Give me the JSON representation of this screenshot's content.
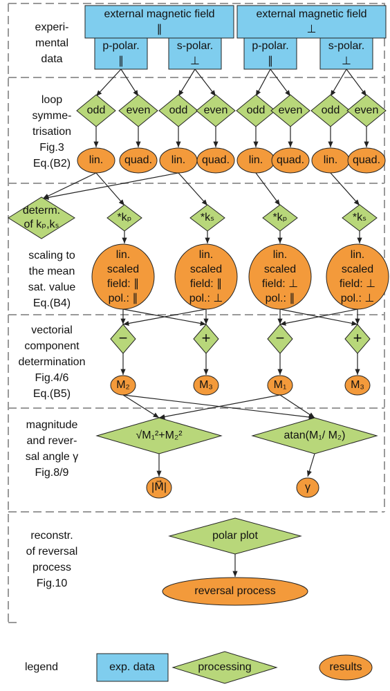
{
  "sections": [
    {
      "label": [
        "experi-",
        "mental",
        "data"
      ]
    },
    {
      "label": [
        "loop",
        "symme-",
        "trisation",
        "Fig.3",
        "Eq.(B2)"
      ]
    },
    {
      "label": [
        "scaling to",
        "the mean",
        "sat. value",
        "Eq.(B4)"
      ]
    },
    {
      "label": [
        "vectorial",
        "component",
        "determination",
        "Fig.4/6",
        "Eq.(B5)"
      ]
    },
    {
      "label": [
        "magnitude",
        "and rever-",
        "sal angle γ",
        "Fig.8/9"
      ]
    },
    {
      "label": [
        "reconstr.",
        "of reversal",
        "process",
        "Fig.10"
      ]
    }
  ],
  "top_boxes": [
    {
      "lines": [
        "external magnetic field",
        "∥"
      ]
    },
    {
      "lines": [
        "external magnetic field",
        "⊥"
      ]
    }
  ],
  "sub_boxes": [
    {
      "lines": [
        "p-polar.",
        "∥"
      ]
    },
    {
      "lines": [
        "s-polar.",
        "⊥"
      ]
    },
    {
      "lines": [
        "p-polar.",
        "∥"
      ]
    },
    {
      "lines": [
        "s-polar.",
        "⊥"
      ]
    }
  ],
  "symmetry_diamonds": [
    "odd",
    "even",
    "odd",
    "even",
    "odd",
    "even",
    "odd",
    "even"
  ],
  "symmetry_results": [
    "lin.",
    "quad.",
    "lin.",
    "quad.",
    "lin.",
    "quad.",
    "lin.",
    "quad."
  ],
  "determ": [
    "determ.",
    "of kₚ,kₛ"
  ],
  "scale_diamonds": [
    "*kₚ",
    "*kₛ",
    "*kₚ",
    "*kₛ"
  ],
  "scaled": [
    {
      "lines": [
        "lin.",
        "scaled",
        "field: ∥",
        "pol.: ∥"
      ]
    },
    {
      "lines": [
        "lin.",
        "scaled",
        "field: ∥",
        "pol.: ⊥"
      ]
    },
    {
      "lines": [
        "lin.",
        "scaled",
        "field: ⊥",
        "pol.: ∥"
      ]
    },
    {
      "lines": [
        "lin.",
        "scaled",
        "field: ⊥",
        "pol.: ⊥"
      ]
    }
  ],
  "ops": [
    "−",
    "+",
    "−",
    "+"
  ],
  "components": [
    "M₂",
    "M₃",
    "M₁",
    "M₃"
  ],
  "magnitude": "√M₁²+M₂²",
  "angle": "atan(M₁/ M₂)",
  "magnitude_result": "|M⃗|",
  "angle_result": "γ",
  "polar": "polar plot",
  "reversal": "reversal process",
  "legend": {
    "title": "legend",
    "items": [
      "exp. data",
      "processing",
      "results"
    ]
  }
}
